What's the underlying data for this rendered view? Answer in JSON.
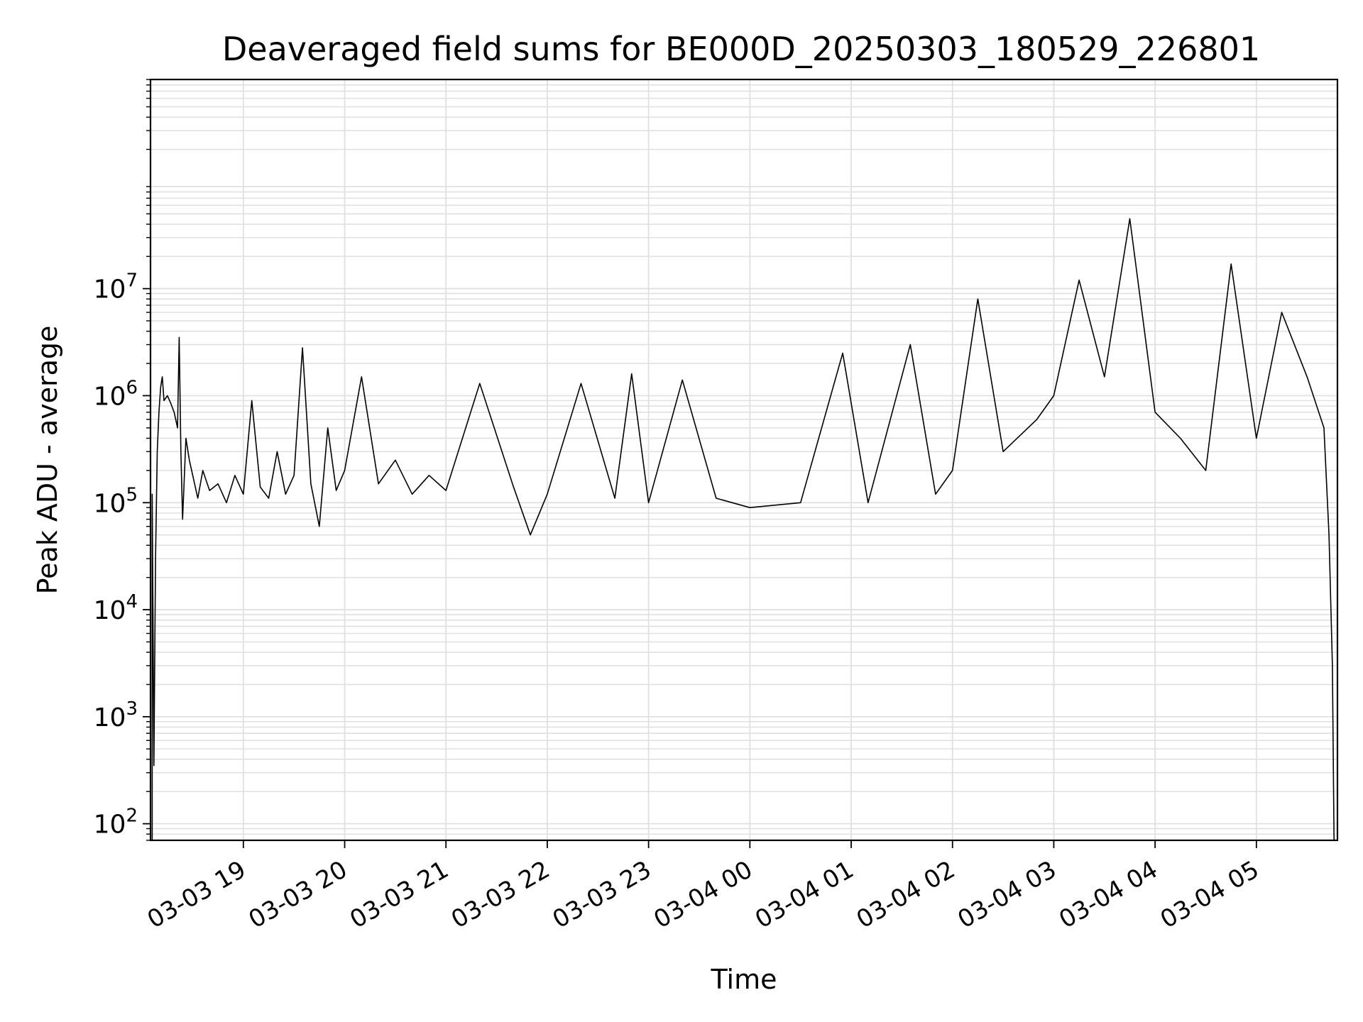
{
  "chart_data": {
    "type": "line",
    "title": "Deaveraged field sums for BE000D_20250303_180529_226801",
    "xlabel": "Time",
    "ylabel": "Peak ADU - average",
    "y_scale": "log",
    "ylim": [
      70,
      900000000
    ],
    "xlim": [
      "2025-03-03 18:05",
      "2025-03-04 05:48"
    ],
    "grid": true,
    "line_color": "#000000",
    "grid_color": "#e0e0e0",
    "x_ticks": [
      {
        "t": "2025-03-03 19:00",
        "label": "03-03 19"
      },
      {
        "t": "2025-03-03 20:00",
        "label": "03-03 20"
      },
      {
        "t": "2025-03-03 21:00",
        "label": "03-03 21"
      },
      {
        "t": "2025-03-03 22:00",
        "label": "03-03 22"
      },
      {
        "t": "2025-03-03 23:00",
        "label": "03-03 23"
      },
      {
        "t": "2025-03-04 00:00",
        "label": "03-04 00"
      },
      {
        "t": "2025-03-04 01:00",
        "label": "03-04 01"
      },
      {
        "t": "2025-03-04 02:00",
        "label": "03-04 02"
      },
      {
        "t": "2025-03-04 03:00",
        "label": "03-04 03"
      },
      {
        "t": "2025-03-04 04:00",
        "label": "03-04 04"
      },
      {
        "t": "2025-03-04 05:00",
        "label": "03-04 05"
      }
    ],
    "y_ticks": [
      {
        "value": 100,
        "base": "10",
        "exp": "2"
      },
      {
        "value": 1000,
        "base": "10",
        "exp": "3"
      },
      {
        "value": 10000,
        "base": "10",
        "exp": "4"
      },
      {
        "value": 100000,
        "base": "10",
        "exp": "5"
      },
      {
        "value": 1000000,
        "base": "10",
        "exp": "6"
      },
      {
        "value": 10000000,
        "base": "10",
        "exp": "7"
      }
    ],
    "series": [
      {
        "points": [
          [
            "2025-03-03 18:06",
            70
          ],
          [
            "2025-03-03 18:06",
            120000
          ],
          [
            "2025-03-03 18:07",
            350
          ],
          [
            "2025-03-03 18:08",
            30000
          ],
          [
            "2025-03-03 18:09",
            300000
          ],
          [
            "2025-03-03 18:10",
            700000
          ],
          [
            "2025-03-03 18:11",
            1200000
          ],
          [
            "2025-03-03 18:12",
            1500000
          ],
          [
            "2025-03-03 18:13",
            900000
          ],
          [
            "2025-03-03 18:15",
            1000000
          ],
          [
            "2025-03-03 18:17",
            850000
          ],
          [
            "2025-03-03 18:19",
            700000
          ],
          [
            "2025-03-03 18:21",
            500000
          ],
          [
            "2025-03-03 18:22",
            3500000
          ],
          [
            "2025-03-03 18:23",
            300000
          ],
          [
            "2025-03-03 18:24",
            70000
          ],
          [
            "2025-03-03 18:26",
            400000
          ],
          [
            "2025-03-03 18:28",
            250000
          ],
          [
            "2025-03-03 18:30",
            180000
          ],
          [
            "2025-03-03 18:33",
            110000
          ],
          [
            "2025-03-03 18:36",
            200000
          ],
          [
            "2025-03-03 18:40",
            130000
          ],
          [
            "2025-03-03 18:45",
            150000
          ],
          [
            "2025-03-03 18:50",
            100000
          ],
          [
            "2025-03-03 18:55",
            180000
          ],
          [
            "2025-03-03 19:00",
            120000
          ],
          [
            "2025-03-03 19:05",
            900000
          ],
          [
            "2025-03-03 19:10",
            140000
          ],
          [
            "2025-03-03 19:15",
            110000
          ],
          [
            "2025-03-03 19:20",
            300000
          ],
          [
            "2025-03-03 19:25",
            120000
          ],
          [
            "2025-03-03 19:30",
            180000
          ],
          [
            "2025-03-03 19:35",
            2800000
          ],
          [
            "2025-03-03 19:40",
            150000
          ],
          [
            "2025-03-03 19:45",
            60000
          ],
          [
            "2025-03-03 19:50",
            500000
          ],
          [
            "2025-03-03 19:55",
            130000
          ],
          [
            "2025-03-03 20:00",
            200000
          ],
          [
            "2025-03-03 20:10",
            1500000
          ],
          [
            "2025-03-03 20:20",
            150000
          ],
          [
            "2025-03-03 20:30",
            250000
          ],
          [
            "2025-03-03 20:40",
            120000
          ],
          [
            "2025-03-03 20:50",
            180000
          ],
          [
            "2025-03-03 21:00",
            130000
          ],
          [
            "2025-03-03 21:20",
            1300000
          ],
          [
            "2025-03-03 21:40",
            140000
          ],
          [
            "2025-03-03 21:50",
            50000
          ],
          [
            "2025-03-03 22:00",
            120000
          ],
          [
            "2025-03-03 22:20",
            1300000
          ],
          [
            "2025-03-03 22:40",
            110000
          ],
          [
            "2025-03-03 22:50",
            1600000
          ],
          [
            "2025-03-03 23:00",
            100000
          ],
          [
            "2025-03-03 23:20",
            1400000
          ],
          [
            "2025-03-03 23:40",
            110000
          ],
          [
            "2025-03-04 00:00",
            90000
          ],
          [
            "2025-03-04 00:30",
            100000
          ],
          [
            "2025-03-04 00:55",
            2500000
          ],
          [
            "2025-03-04 01:10",
            100000
          ],
          [
            "2025-03-04 01:35",
            3000000
          ],
          [
            "2025-03-04 01:50",
            120000
          ],
          [
            "2025-03-04 02:00",
            200000
          ],
          [
            "2025-03-04 02:15",
            8000000
          ],
          [
            "2025-03-04 02:30",
            300000
          ],
          [
            "2025-03-04 02:50",
            600000
          ],
          [
            "2025-03-04 03:00",
            1000000
          ],
          [
            "2025-03-04 03:15",
            12000000
          ],
          [
            "2025-03-04 03:30",
            1500000
          ],
          [
            "2025-03-04 03:45",
            45000000
          ],
          [
            "2025-03-04 04:00",
            700000
          ],
          [
            "2025-03-04 04:15",
            400000
          ],
          [
            "2025-03-04 04:30",
            200000
          ],
          [
            "2025-03-04 04:45",
            17000000
          ],
          [
            "2025-03-04 05:00",
            400000
          ],
          [
            "2025-03-04 05:15",
            6000000
          ],
          [
            "2025-03-04 05:30",
            1500000
          ],
          [
            "2025-03-04 05:40",
            500000
          ],
          [
            "2025-03-04 05:43",
            50000
          ],
          [
            "2025-03-04 05:45",
            3000
          ],
          [
            "2025-03-04 05:46",
            70
          ]
        ]
      }
    ]
  }
}
